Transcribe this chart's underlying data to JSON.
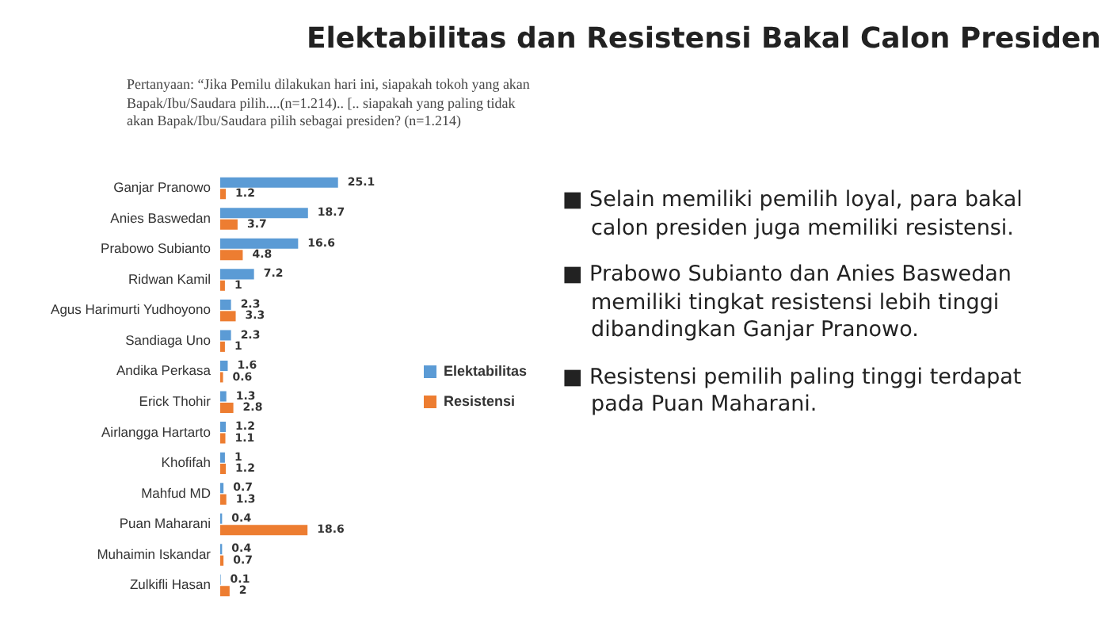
{
  "chart_data": {
    "type": "bar",
    "orientation": "horizontal",
    "title": "Elektabilitas dan Resistensi Bakal Calon Presiden",
    "subtitle": "Pertanyaan: “Jika Pemilu dilakukan hari ini, siapakah tokoh yang akan Bapak/Ibu/Saudara pilih....(n=1.214).. [.. siapakah yang paling tidak akan Bapak/Ibu/Saudara pilih sebagai presiden? (n=1.214)",
    "categories": [
      "Ganjar Pranowo",
      "Anies Baswedan",
      "Prabowo Subianto",
      "Ridwan Kamil",
      "Agus Harimurti Yudhoyono",
      "Sandiaga Uno",
      "Andika Perkasa",
      "Erick Thohir",
      "Airlangga Hartarto",
      "Khofifah",
      "Mahfud MD",
      "Puan Maharani",
      "Muhaimin Iskandar",
      "Zulkifli Hasan"
    ],
    "series": [
      {
        "name": "Elektabilitas",
        "color": "#5b9bd5",
        "values": [
          25.1,
          18.7,
          16.6,
          7.2,
          2.3,
          2.3,
          1.6,
          1.3,
          1.2,
          1,
          0.7,
          0.4,
          0.4,
          0.1
        ]
      },
      {
        "name": "Resistensi",
        "color": "#ed7d31",
        "values": [
          1.2,
          3.7,
          4.8,
          1,
          3.3,
          1,
          0.6,
          2.8,
          1.1,
          1.2,
          1.3,
          18.6,
          0.7,
          2
        ]
      }
    ],
    "data_labels": true,
    "legend": "right",
    "grid": false,
    "annotations": [
      "■ Selain memiliki pemilih loyal, para bakal calon presiden juga memiliki resistensi.",
      "■ Prabowo Subianto dan Anies Baswedan memiliki tingkat resistensi lebih tinggi dibandingkan Ganjar Pranowo.",
      "■ Resistensi pemilih paling tinggi terdapat pada Puan Maharani."
    ]
  }
}
